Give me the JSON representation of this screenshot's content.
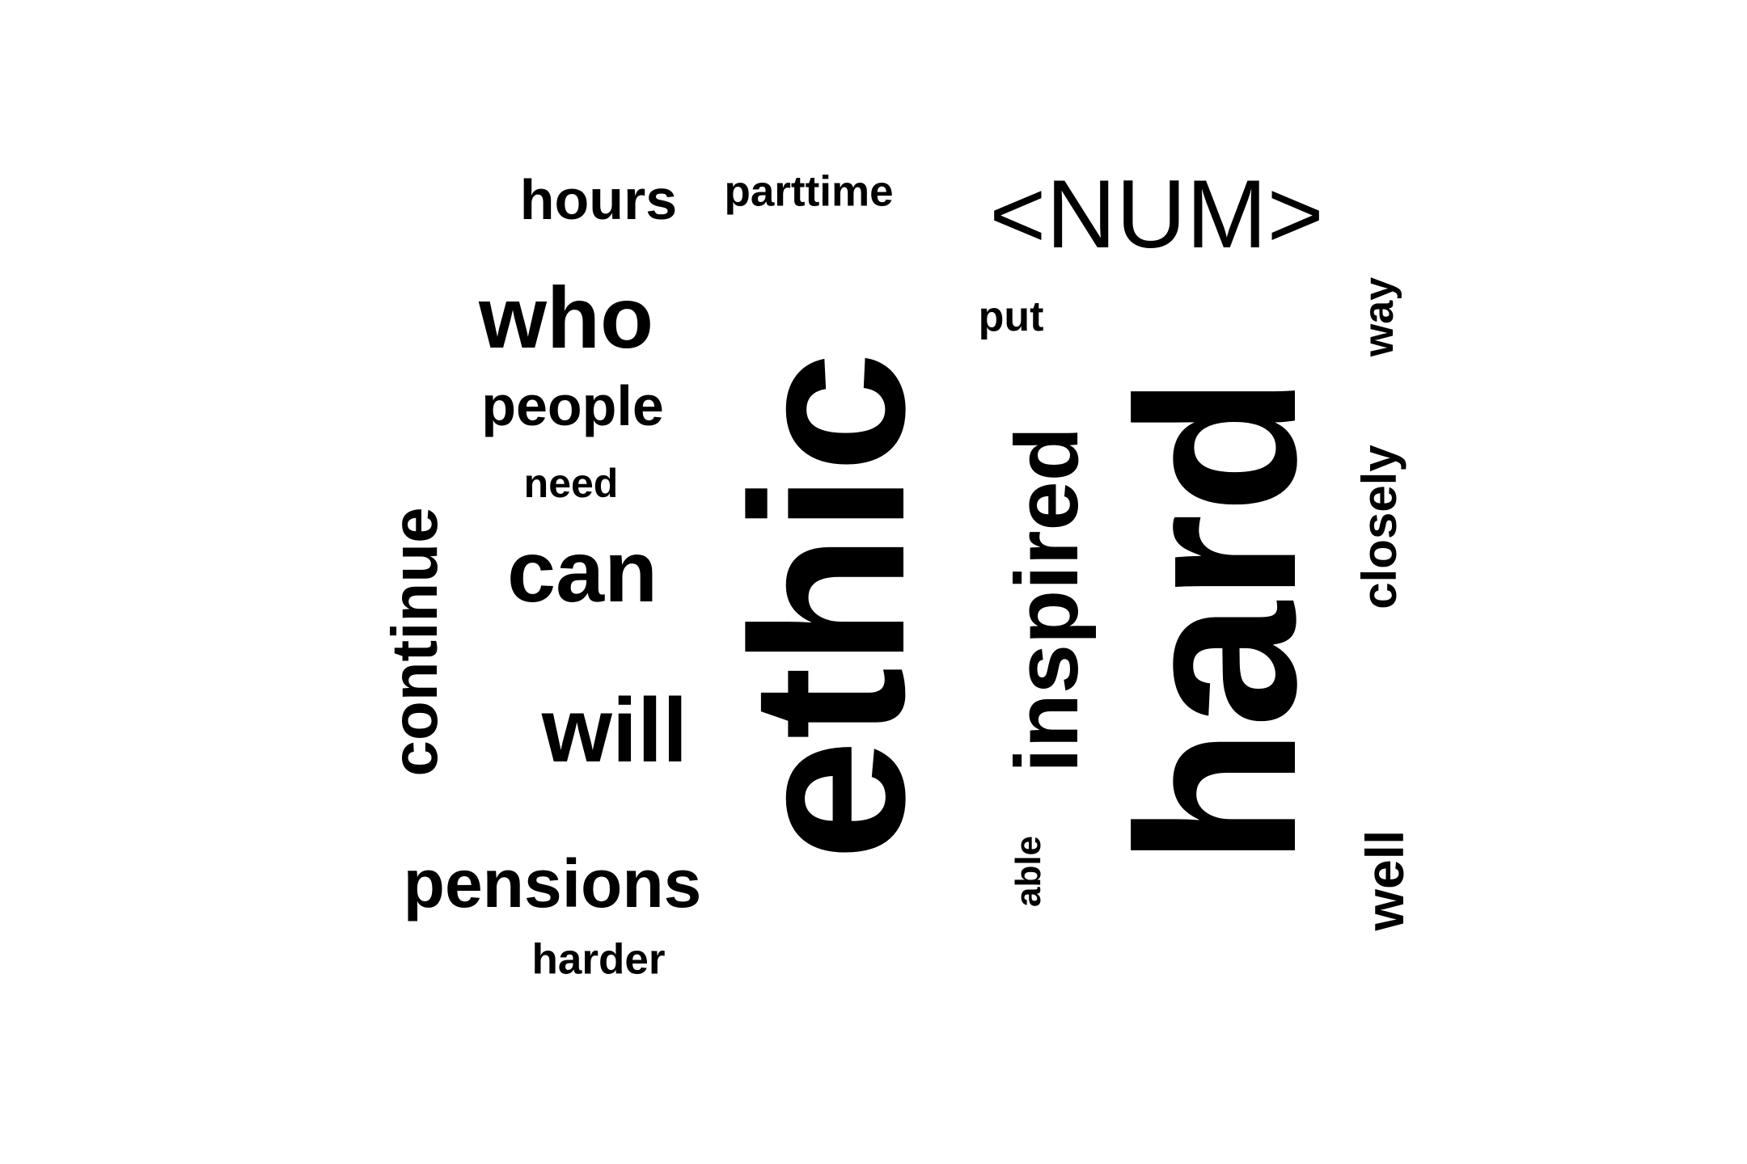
{
  "word_cloud": {
    "colors": {
      "background": "#ffffff",
      "text": "#000000"
    },
    "words": {
      "hours": "hours",
      "parttime": "parttime",
      "num": "<NUM>",
      "who": "who",
      "put": "put",
      "way": "way",
      "people": "people",
      "need": "need",
      "can": "can",
      "continue": "continue",
      "ethic": "ethic",
      "inspired": "inspired",
      "hard": "hard",
      "closely": "closely",
      "will": "will",
      "pensions": "pensions",
      "harder": "harder",
      "able": "able",
      "well": "well"
    }
  }
}
